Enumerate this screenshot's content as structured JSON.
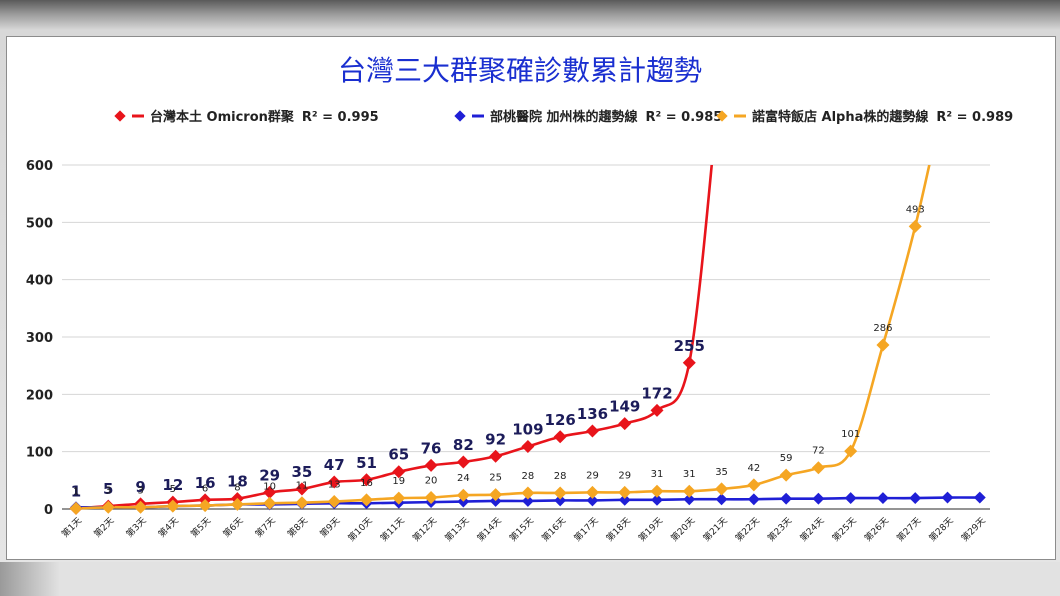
{
  "chart_data": {
    "type": "line",
    "title": "台灣三大群聚確診數累計趨勢",
    "categories": [
      "第1天",
      "第2天",
      "第3天",
      "第4天",
      "第5天",
      "第6天",
      "第7天",
      "第8天",
      "第9天",
      "第10天",
      "第11天",
      "第12天",
      "第13天",
      "第14天",
      "第15天",
      "第16天",
      "第17天",
      "第18天",
      "第19天",
      "第20天",
      "第21天",
      "第22天",
      "第23天",
      "第24天",
      "第25天",
      "第26天",
      "第27天",
      "第28天",
      "第29天"
    ],
    "ylim": [
      0,
      600
    ],
    "yticks": [
      0,
      100,
      200,
      300,
      400,
      500,
      600
    ],
    "grid": true,
    "legend_position": "top",
    "series": [
      {
        "name": "台灣本土 Omicron群聚",
        "trend_label": "R² = 0.995",
        "color": "#e8141b",
        "values": [
          1,
          5,
          9,
          12,
          16,
          18,
          29,
          35,
          47,
          51,
          65,
          76,
          82,
          92,
          109,
          126,
          136,
          149,
          172,
          255,
          null,
          null,
          null,
          null,
          null,
          null,
          null,
          null,
          null
        ]
      },
      {
        "name": "部桃醫院 加州株的趨勢線",
        "trend_label": "R² = 0.985",
        "color": "#1f1fd6",
        "values": [
          3,
          3,
          3,
          5,
          6,
          8,
          8,
          9,
          10,
          10,
          11,
          12,
          13,
          14,
          14,
          15,
          15,
          16,
          16,
          17,
          17,
          17,
          18,
          18,
          19,
          19,
          19,
          20,
          20
        ]
      },
      {
        "name": "諾富特飯店 Alpha株的趨勢線",
        "trend_label": "R² = 0.989",
        "color": "#f5a623",
        "values": [
          1,
          3,
          3,
          5,
          6,
          8,
          10,
          11,
          13,
          16,
          19,
          20,
          24,
          25,
          28,
          28,
          29,
          29,
          31,
          31,
          35,
          42,
          59,
          72,
          101,
          286,
          493,
          null,
          null
        ]
      }
    ]
  }
}
